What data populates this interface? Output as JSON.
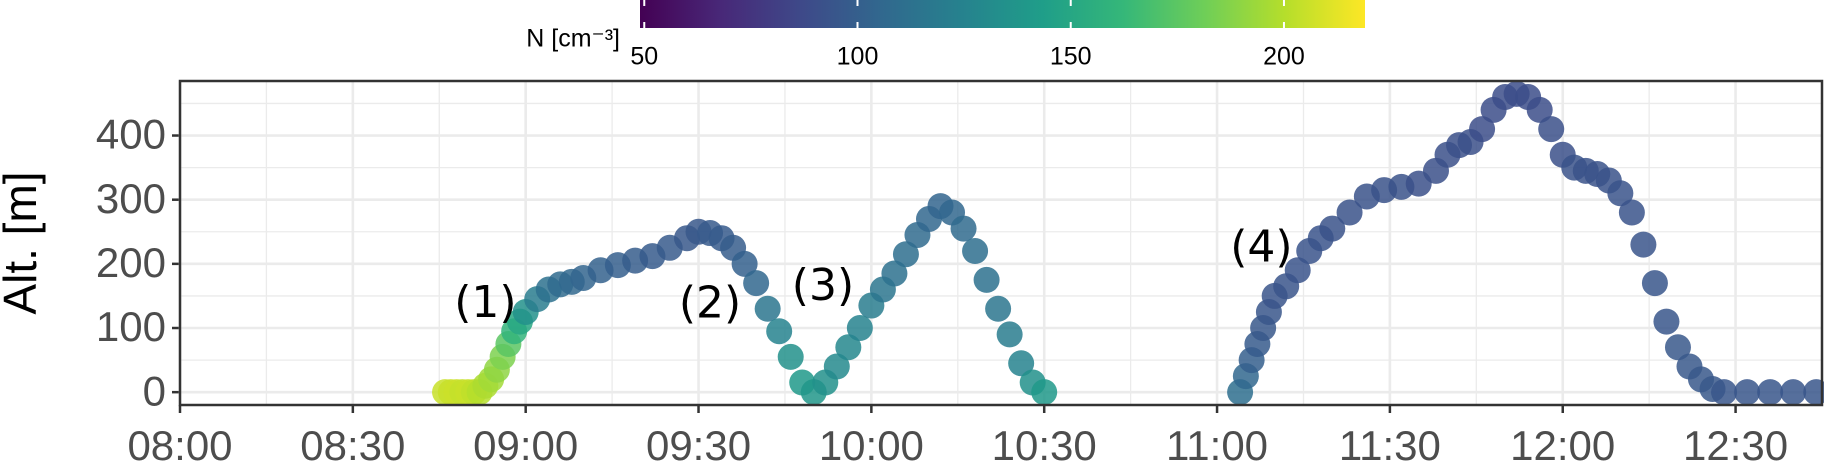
{
  "chart_data": {
    "type": "scatter",
    "ylabel": "Alt. [m]",
    "colorbar_label": "N [cm⁻³]",
    "colormap": "viridis",
    "clim": [
      49,
      219
    ],
    "cticks": [
      50,
      100,
      150,
      200
    ],
    "xlim": [
      480,
      765
    ],
    "xticks": [
      {
        "value": 480,
        "label": "08:00"
      },
      {
        "value": 510,
        "label": "08:30"
      },
      {
        "value": 540,
        "label": "09:00"
      },
      {
        "value": 570,
        "label": "09:30"
      },
      {
        "value": 600,
        "label": "10:00"
      },
      {
        "value": 630,
        "label": "10:30"
      },
      {
        "value": 660,
        "label": "11:00"
      },
      {
        "value": 690,
        "label": "11:30"
      },
      {
        "value": 720,
        "label": "12:00"
      },
      {
        "value": 750,
        "label": "12:30"
      }
    ],
    "ylim": [
      -20,
      485
    ],
    "yticks": [
      0,
      100,
      200,
      300,
      400
    ],
    "grid": true,
    "x": [
      526,
      527,
      528,
      529,
      530,
      531,
      532,
      533,
      534,
      535,
      536,
      537,
      538,
      539,
      540,
      542,
      544,
      546,
      548,
      550,
      553,
      556,
      559,
      562,
      565,
      568,
      570,
      572,
      574,
      576,
      578,
      580,
      582,
      584,
      586,
      588,
      590,
      592,
      594,
      596,
      598,
      600,
      602,
      604,
      606,
      608,
      610,
      612,
      614,
      616,
      618,
      620,
      622,
      624,
      626,
      628,
      630,
      664,
      665,
      666,
      667,
      668,
      669,
      670,
      672,
      674,
      676,
      678,
      680,
      683,
      686,
      689,
      692,
      695,
      698,
      700,
      702,
      704,
      706,
      708,
      710,
      712,
      714,
      716,
      718,
      720,
      722,
      724,
      726,
      728,
      730,
      732,
      734,
      736,
      738,
      740,
      742,
      744,
      746,
      748,
      752,
      756,
      760,
      764
    ],
    "y": [
      0,
      0,
      0,
      0,
      0,
      0,
      0,
      10,
      20,
      35,
      55,
      75,
      95,
      110,
      125,
      145,
      160,
      168,
      172,
      178,
      190,
      198,
      205,
      212,
      225,
      240,
      250,
      248,
      240,
      225,
      200,
      170,
      130,
      95,
      55,
      15,
      0,
      15,
      40,
      70,
      100,
      135,
      160,
      185,
      215,
      245,
      270,
      290,
      280,
      255,
      220,
      175,
      130,
      90,
      45,
      15,
      0,
      0,
      25,
      50,
      75,
      100,
      125,
      150,
      165,
      190,
      220,
      240,
      255,
      280,
      305,
      315,
      320,
      325,
      345,
      370,
      385,
      390,
      410,
      440,
      460,
      465,
      460,
      440,
      410,
      370,
      350,
      345,
      340,
      330,
      310,
      280,
      230,
      170,
      110,
      70,
      40,
      20,
      5,
      0,
      0,
      0,
      0,
      0
    ],
    "color_values": [
      205,
      205,
      206,
      204,
      205,
      203,
      200,
      198,
      195,
      190,
      185,
      175,
      160,
      150,
      135,
      120,
      112,
      108,
      106,
      104,
      102,
      100,
      99,
      98,
      97,
      96,
      96,
      97,
      98,
      99,
      101,
      105,
      115,
      125,
      135,
      140,
      138,
      135,
      130,
      128,
      125,
      120,
      115,
      112,
      110,
      108,
      105,
      104,
      105,
      108,
      110,
      112,
      115,
      120,
      125,
      135,
      140,
      110,
      105,
      100,
      98,
      96,
      95,
      94,
      94,
      93,
      93,
      93,
      92,
      92,
      92,
      92,
      92,
      91,
      91,
      91,
      91,
      91,
      90,
      90,
      90,
      90,
      90,
      90,
      91,
      91,
      92,
      92,
      92,
      92,
      93,
      93,
      94,
      95,
      95,
      96,
      96,
      96,
      96,
      95,
      95,
      95,
      95,
      95
    ],
    "annotations": [
      {
        "text": "(1)",
        "x": 533,
        "y": 136
      },
      {
        "text": "(2)",
        "x": 572,
        "y": 135
      },
      {
        "text": "(3)",
        "x": 591.6,
        "y": 162
      },
      {
        "text": "(4)",
        "x": 667.7,
        "y": 222
      }
    ]
  }
}
